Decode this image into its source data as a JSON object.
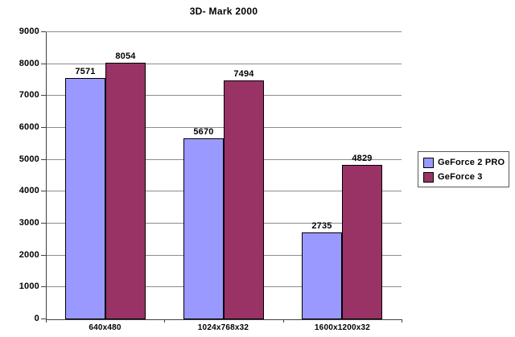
{
  "chart_data": {
    "type": "bar",
    "title": "3D- Mark 2000",
    "categories": [
      "640x480",
      "1024x768x32",
      "1600x1200x32"
    ],
    "series": [
      {
        "name": "GeForce 2 PRO",
        "color": "#9999FF",
        "values": [
          7571,
          5670,
          2735
        ]
      },
      {
        "name": "GeForce 3",
        "color": "#993366",
        "values": [
          8054,
          7494,
          4829
        ]
      }
    ],
    "ylim": [
      0,
      9000
    ],
    "ytick_interval": 1000,
    "yticks": [
      0,
      1000,
      2000,
      3000,
      4000,
      5000,
      6000,
      7000,
      8000,
      9000
    ],
    "xlabel": "",
    "ylabel": "",
    "grid": "horizontal",
    "legend_position": "right",
    "data_labels": true
  },
  "colors": {
    "background": "#FFFFFF",
    "gridline": "#8C8C8C",
    "axis": "#404040",
    "bar_border": "#000000",
    "legend_border": "#595959",
    "text": "#000000"
  }
}
